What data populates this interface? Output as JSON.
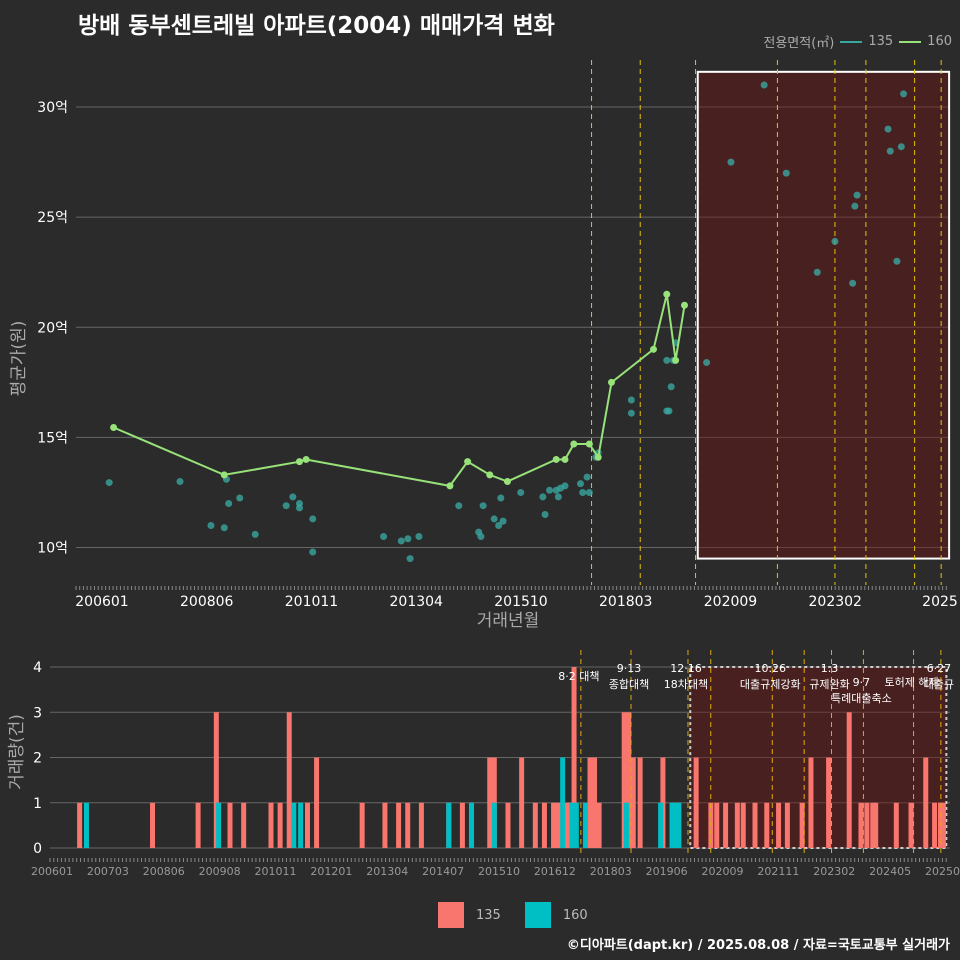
{
  "chart_data": [
    {
      "type": "line",
      "title": "방배 동부센트레빌 아파트(2004) 매매가격 변화",
      "xlabel": "거래년월",
      "ylabel": "평균가(원)",
      "legend_title": "전용면적(㎡)",
      "legend_placement": "top-right",
      "grid": true,
      "x_ticks": [
        "200601",
        "200806",
        "201011",
        "201304",
        "201510",
        "201803",
        "202009",
        "202302",
        "2025"
      ],
      "y_ticks": [
        {
          "v": 10,
          "label": "10억"
        },
        {
          "v": 15,
          "label": "15억"
        },
        {
          "v": 20,
          "label": "20억"
        },
        {
          "v": 25,
          "label": "25억"
        },
        {
          "v": 30,
          "label": "30억"
        }
      ],
      "ylim": [
        8.3,
        32.5
      ],
      "xlim": [
        2005.95,
        2025.7
      ],
      "highlight_box": {
        "x0": 2020.0,
        "x1": 2025.68,
        "y0": 9.5,
        "y1": 31.6
      },
      "policy_lines": [
        2017.6,
        2018.7,
        2019.95,
        2021.8,
        2023.1,
        2023.8,
        2024.9,
        2025.5
      ],
      "series": [
        {
          "name": "135",
          "color": "#3aa6a0",
          "points": [
            [
              2006.7,
              12.95
            ],
            [
              2008.3,
              13.0
            ],
            [
              2009.0,
              11.0
            ],
            [
              2009.3,
              10.9
            ],
            [
              2009.35,
              13.1
            ],
            [
              2009.4,
              12.0
            ],
            [
              2009.65,
              12.25
            ],
            [
              2010.0,
              10.6
            ],
            [
              2010.7,
              11.9
            ],
            [
              2010.85,
              12.3
            ],
            [
              2011.0,
              12.0
            ],
            [
              2011.0,
              11.8
            ],
            [
              2011.3,
              11.3
            ],
            [
              2011.3,
              9.8
            ],
            [
              2012.9,
              10.5
            ],
            [
              2013.3,
              10.3
            ],
            [
              2013.45,
              10.4
            ],
            [
              2013.5,
              9.5
            ],
            [
              2013.7,
              10.5
            ],
            [
              2014.6,
              11.9
            ],
            [
              2015.05,
              10.7
            ],
            [
              2015.1,
              10.5
            ],
            [
              2015.15,
              11.9
            ],
            [
              2015.4,
              11.3
            ],
            [
              2015.5,
              11.0
            ],
            [
              2015.55,
              12.25
            ],
            [
              2015.6,
              11.2
            ],
            [
              2016.0,
              12.5
            ],
            [
              2016.5,
              12.3
            ],
            [
              2016.55,
              11.5
            ],
            [
              2016.65,
              12.6
            ],
            [
              2016.8,
              12.6
            ],
            [
              2016.85,
              12.3
            ],
            [
              2016.9,
              12.7
            ],
            [
              2017.0,
              12.8
            ],
            [
              2017.35,
              12.9
            ],
            [
              2017.4,
              12.5
            ],
            [
              2017.5,
              13.2
            ],
            [
              2017.55,
              12.5
            ],
            [
              2017.7,
              14.1
            ],
            [
              2017.75,
              14.3
            ],
            [
              2018.5,
              16.7
            ],
            [
              2018.5,
              16.1
            ],
            [
              2019.3,
              18.5
            ],
            [
              2019.3,
              16.2
            ],
            [
              2019.35,
              16.2
            ],
            [
              2019.4,
              17.3
            ],
            [
              2019.45,
              18.5
            ],
            [
              2019.5,
              19.3
            ],
            [
              2020.2,
              18.4
            ],
            [
              2020.75,
              27.5
            ],
            [
              2021.5,
              31.0
            ],
            [
              2022.0,
              27.0
            ],
            [
              2022.7,
              22.5
            ],
            [
              2023.1,
              23.9
            ],
            [
              2023.5,
              22.0
            ],
            [
              2023.55,
              25.5
            ],
            [
              2023.6,
              26.0
            ],
            [
              2024.3,
              29.0
            ],
            [
              2024.35,
              28.0
            ],
            [
              2024.5,
              23.0
            ],
            [
              2024.6,
              28.2
            ],
            [
              2024.65,
              30.6
            ]
          ]
        },
        {
          "name": "160",
          "color": "#98e27a",
          "points": [
            [
              2006.8,
              15.45
            ],
            [
              2009.3,
              13.3
            ],
            [
              2011.0,
              13.9
            ],
            [
              2011.15,
              14.0
            ],
            [
              2014.4,
              12.8
            ],
            [
              2014.8,
              13.9
            ],
            [
              2015.3,
              13.3
            ],
            [
              2015.7,
              13.0
            ],
            [
              2016.8,
              14.0
            ],
            [
              2017.0,
              14.0
            ],
            [
              2017.2,
              14.7
            ],
            [
              2017.55,
              14.7
            ],
            [
              2017.75,
              14.1
            ],
            [
              2018.05,
              17.5
            ],
            [
              2019.0,
              19.0
            ],
            [
              2019.3,
              21.5
            ],
            [
              2019.5,
              18.5
            ],
            [
              2019.7,
              21.0
            ]
          ]
        }
      ]
    },
    {
      "type": "bar",
      "ylabel": "거래량(건)",
      "y_ticks": [
        0,
        1,
        2,
        3,
        4
      ],
      "ylim": [
        0,
        4.2
      ],
      "xlim": [
        2005.95,
        2025.7
      ],
      "x_ticks": [
        "200601",
        "200703",
        "200806",
        "200908",
        "201011",
        "201201",
        "201304",
        "201407",
        "201510",
        "201612",
        "201803",
        "201906",
        "202009",
        "202111",
        "202302",
        "202405",
        "202508"
      ],
      "highlight_box": {
        "x0": 2020.0,
        "x1": 2025.62,
        "y0": 0,
        "y1": 4
      },
      "annotations": [
        {
          "x": 2017.6,
          "lines": [
            "8·2 대책"
          ],
          "row": 0
        },
        {
          "x": 2018.7,
          "lines": [
            "9·13",
            "종합대책"
          ],
          "row": 0
        },
        {
          "x": 2019.95,
          "lines": [
            "12·16",
            "18차대책"
          ],
          "row": 0
        },
        {
          "x": 2021.8,
          "lines": [
            "10.26",
            "대출규제강화"
          ],
          "row": 0
        },
        {
          "x": 2023.1,
          "lines": [
            "1.3",
            "규제완화"
          ],
          "row": 0
        },
        {
          "x": 2023.8,
          "lines": [
            "9·7",
            "특례대출축소"
          ],
          "row": 1
        },
        {
          "x": 2024.9,
          "lines": [
            "토허제 해제"
          ],
          "row": 1
        },
        {
          "x": 2025.5,
          "lines": [
            "6·27",
            "대출규"
          ],
          "row": 0
        }
      ],
      "policy_lines": [
        2017.6,
        2018.7,
        2019.95,
        2020.45,
        2021.8,
        2022.5,
        2023.1,
        2023.8,
        2024.9,
        2025.5
      ],
      "series": [
        {
          "name": "135",
          "color": "#f8766d",
          "bars": [
            [
              2006.6,
              1
            ],
            [
              2008.2,
              1
            ],
            [
              2009.2,
              1
            ],
            [
              2009.6,
              3
            ],
            [
              2009.9,
              1
            ],
            [
              2010.2,
              1
            ],
            [
              2010.8,
              1
            ],
            [
              2011.0,
              1
            ],
            [
              2011.2,
              3
            ],
            [
              2011.6,
              1
            ],
            [
              2011.8,
              2
            ],
            [
              2012.8,
              1
            ],
            [
              2013.3,
              1
            ],
            [
              2013.6,
              1
            ],
            [
              2013.8,
              1
            ],
            [
              2014.1,
              1
            ],
            [
              2014.7,
              1
            ],
            [
              2015.0,
              1
            ],
            [
              2015.2,
              1
            ],
            [
              2015.6,
              2
            ],
            [
              2015.7,
              2
            ],
            [
              2016.0,
              1
            ],
            [
              2016.3,
              2
            ],
            [
              2016.6,
              1
            ],
            [
              2016.8,
              1
            ],
            [
              2017.0,
              1
            ],
            [
              2017.1,
              1
            ],
            [
              2017.2,
              1
            ],
            [
              2017.3,
              1
            ],
            [
              2017.35,
              1
            ],
            [
              2017.4,
              1
            ],
            [
              2017.45,
              4
            ],
            [
              2017.8,
              2
            ],
            [
              2017.9,
              2
            ],
            [
              2018.0,
              1
            ],
            [
              2018.55,
              3
            ],
            [
              2018.65,
              3
            ],
            [
              2018.7,
              2
            ],
            [
              2018.75,
              2
            ],
            [
              2018.9,
              2
            ],
            [
              2019.4,
              2
            ],
            [
              2019.7,
              1
            ],
            [
              2020.2,
              2
            ],
            [
              2020.7,
              1
            ],
            [
              2020.9,
              1
            ],
            [
              2021.2,
              1
            ],
            [
              2021.6,
              1
            ],
            [
              2021.8,
              1
            ],
            [
              2022.2,
              1
            ],
            [
              2022.6,
              1
            ],
            [
              2023.0,
              1
            ],
            [
              2023.3,
              1
            ],
            [
              2023.8,
              1
            ],
            [
              2024.1,
              2
            ],
            [
              2024.7,
              2
            ],
            [
              2025.4,
              3
            ],
            [
              2025.8,
              1
            ],
            [
              2026.0,
              1
            ],
            [
              2026.2,
              1
            ],
            [
              2026.3,
              1
            ],
            [
              2027.0,
              1
            ],
            [
              2027.5,
              1
            ],
            [
              2028.0,
              2
            ],
            [
              2028.3,
              1
            ],
            [
              2028.5,
              1
            ],
            [
              2028.6,
              1
            ]
          ]
        },
        {
          "name": "160",
          "color": "#00bfc4",
          "bars": [
            [
              2006.75,
              1
            ],
            [
              2009.65,
              1
            ],
            [
              2011.3,
              1
            ],
            [
              2011.45,
              1
            ],
            [
              2014.7,
              1
            ],
            [
              2015.2,
              1
            ],
            [
              2015.7,
              1
            ],
            [
              2017.2,
              2
            ],
            [
              2017.4,
              1
            ],
            [
              2017.5,
              1
            ],
            [
              2017.7,
              1
            ],
            [
              2018.6,
              1
            ],
            [
              2019.35,
              1
            ],
            [
              2019.6,
              1
            ],
            [
              2019.65,
              1
            ],
            [
              2019.75,
              1
            ]
          ]
        }
      ]
    }
  ],
  "legend_bottom": [
    {
      "name": "135",
      "color": "#f8766d"
    },
    {
      "name": "160",
      "color": "#00bfc4"
    }
  ],
  "source": "©디아파트(dapt.kr) / 2025.08.08 / 자료=국토교통부 실거래가"
}
